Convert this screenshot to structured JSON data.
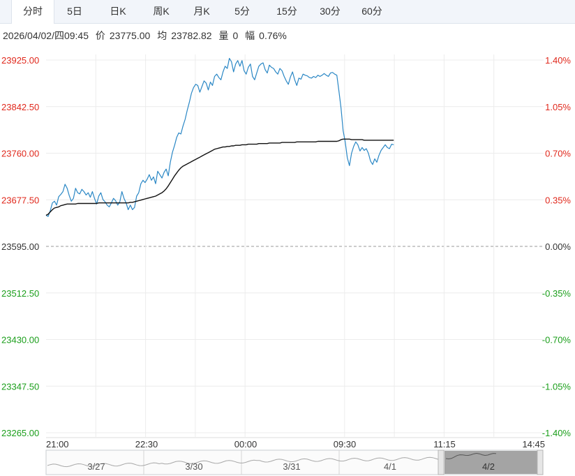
{
  "tabs": [
    {
      "label": "分时",
      "active": true
    },
    {
      "label": "5日"
    },
    {
      "label": "日K"
    },
    {
      "label": "周K"
    },
    {
      "label": "月K"
    },
    {
      "label": "5分"
    },
    {
      "label": "15分"
    },
    {
      "label": "30分"
    },
    {
      "label": "60分"
    }
  ],
  "info": {
    "datetime": "2026/04/02/四09:45",
    "price_label": "价",
    "price": "23775.00",
    "avg_label": "均",
    "avg": "23782.82",
    "volume_label": "量",
    "volume": "0",
    "change_label": "幅",
    "change": "0.76%"
  },
  "colors": {
    "up": "#e0281c",
    "down": "#1a9e1a",
    "flat": "#333333",
    "price_line": "#2a87c5",
    "avg_line": "#111111",
    "grid": "#ececec",
    "nav_fill": "#9a9a9a"
  },
  "chart_data": {
    "type": "line",
    "prev_close": 23595.0,
    "y_labels": [
      "23925.00",
      "23842.50",
      "23760.00",
      "23677.50",
      "23595.00",
      "23512.50",
      "23430.00",
      "23347.50",
      "23265.00"
    ],
    "pct_labels": [
      "1.40%",
      "1.05%",
      "0.70%",
      "0.35%",
      "0.00%",
      "-0.35%",
      "-0.70%",
      "-1.05%",
      "-1.40%"
    ],
    "ylim": [
      23265.0,
      23925.0
    ],
    "x_labels": [
      "21:00",
      "22:30",
      "00:00",
      "09:30",
      "11:15",
      "14:45"
    ],
    "x_slots_total": 615,
    "series": [
      {
        "key": "price",
        "values": [
          23650,
          23648,
          23658,
          23672,
          23675,
          23668,
          23683,
          23687,
          23692,
          23705,
          23698,
          23685,
          23675,
          23680,
          23698,
          23690,
          23688,
          23696,
          23692,
          23686,
          23690,
          23682,
          23692,
          23680,
          23670,
          23684,
          23690,
          23678,
          23674,
          23668,
          23665,
          23672,
          23680,
          23676,
          23668,
          23674,
          23692,
          23680,
          23672,
          23660,
          23668,
          23660,
          23664,
          23684,
          23690,
          23706,
          23712,
          23708,
          23714,
          23722,
          23712,
          23718,
          23706,
          23728,
          23722,
          23716,
          23726,
          23732,
          23720,
          23744,
          23762,
          23774,
          23788,
          23796,
          23794,
          23808,
          23820,
          23836,
          23850,
          23866,
          23876,
          23882,
          23880,
          23868,
          23878,
          23888,
          23884,
          23872,
          23886,
          23880,
          23896,
          23900,
          23894,
          23890,
          23904,
          23914,
          23910,
          23928,
          23922,
          23904,
          23918,
          23924,
          23914,
          23924,
          23906,
          23900,
          23912,
          23918,
          23896,
          23890,
          23902,
          23914,
          23918,
          23920,
          23908,
          23902,
          23916,
          23912,
          23910,
          23904,
          23900,
          23910,
          23906,
          23896,
          23888,
          23882,
          23895,
          23904,
          23890,
          23880,
          23893,
          23891,
          23900,
          23898,
          23897,
          23894,
          23893,
          23896,
          23894,
          23898,
          23896,
          23898,
          23901,
          23898,
          23896,
          23902,
          23903,
          23900,
          23898,
          23870,
          23840,
          23800,
          23780,
          23752,
          23738,
          23760,
          23772,
          23780,
          23775,
          23764,
          23770,
          23765,
          23768,
          23760,
          23746,
          23740,
          23750,
          23744,
          23756,
          23765,
          23770,
          23775,
          23770,
          23768,
          23776,
          23775
        ]
      },
      {
        "key": "avg",
        "values": [
          23650,
          23652,
          23656,
          23660,
          23663,
          23664,
          23665,
          23667,
          23668,
          23669,
          23670,
          23670,
          23670,
          23670,
          23670,
          23671,
          23671,
          23671,
          23671,
          23671,
          23671,
          23671,
          23671,
          23671,
          23671,
          23672,
          23672,
          23672,
          23672,
          23672,
          23672,
          23672,
          23672,
          23672,
          23672,
          23672,
          23672,
          23672,
          23672,
          23672,
          23673,
          23673,
          23674,
          23675,
          23676,
          23677,
          23678,
          23679,
          23680,
          23681,
          23682,
          23683,
          23684,
          23686,
          23688,
          23690,
          23693,
          23697,
          23702,
          23708,
          23714,
          23720,
          23725,
          23730,
          23734,
          23737,
          23739,
          23741,
          23743,
          23745,
          23747,
          23749,
          23751,
          23753,
          23755,
          23757,
          23759,
          23761,
          23763,
          23765,
          23767,
          23768,
          23769,
          23770,
          23771,
          23771,
          23772,
          23772,
          23773,
          23773,
          23774,
          23774,
          23774,
          23775,
          23775,
          23775,
          23776,
          23776,
          23776,
          23776,
          23776,
          23777,
          23777,
          23777,
          23777,
          23777,
          23778,
          23778,
          23778,
          23778,
          23778,
          23778,
          23779,
          23779,
          23779,
          23779,
          23779,
          23779,
          23779,
          23780,
          23780,
          23780,
          23780,
          23780,
          23780,
          23780,
          23780,
          23780,
          23780,
          23781,
          23781,
          23781,
          23781,
          23781,
          23781,
          23781,
          23781,
          23781,
          23781,
          23782,
          23784,
          23785,
          23785,
          23785,
          23785,
          23784,
          23784,
          23784,
          23784,
          23784,
          23784,
          23783,
          23783,
          23783,
          23783,
          23783,
          23783,
          23783,
          23783,
          23783,
          23783,
          23783,
          23783,
          23783,
          23783,
          23783
        ]
      }
    ],
    "navigator": {
      "labels": [
        "3/27",
        "3/30",
        "3/31",
        "4/1",
        "4/2"
      ],
      "selected_index": 4
    }
  }
}
